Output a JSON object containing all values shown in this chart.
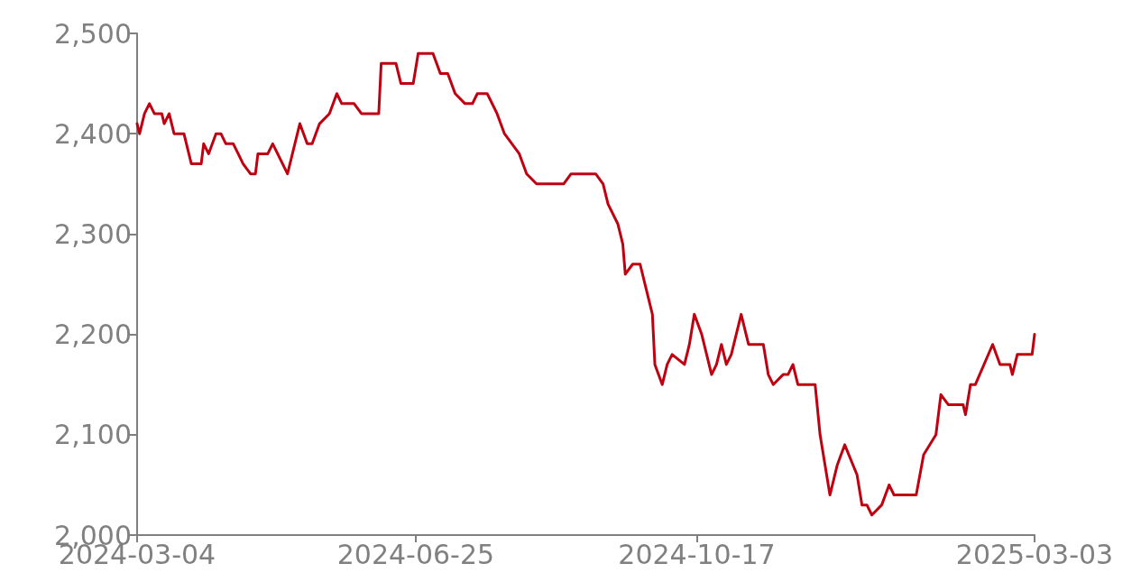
{
  "chart_data": {
    "type": "line",
    "color": "#c00010",
    "line_style": "solid",
    "marker": "none",
    "grid": false,
    "xlim": [
      "2024-03-04",
      "2025-03-03"
    ],
    "xticks": [
      "2024-03-04",
      "2024-06-25",
      "2024-10-17",
      "2025-03-03"
    ],
    "ylim": [
      2000,
      2500
    ],
    "yticks": [
      {
        "value": 2000,
        "label": "2,000"
      },
      {
        "value": 2100,
        "label": "2,100"
      },
      {
        "value": 2200,
        "label": "2,200"
      },
      {
        "value": 2300,
        "label": "2,300"
      },
      {
        "value": 2400,
        "label": "2,400"
      },
      {
        "value": 2500,
        "label": "2,500"
      }
    ],
    "x": [
      "2024-03-04",
      "2024-03-05",
      "2024-03-07",
      "2024-03-09",
      "2024-03-11",
      "2024-03-14",
      "2024-03-15",
      "2024-03-17",
      "2024-03-19",
      "2024-03-23",
      "2024-03-26",
      "2024-03-30",
      "2024-03-31",
      "2024-04-02",
      "2024-04-05",
      "2024-04-07",
      "2024-04-09",
      "2024-04-12",
      "2024-04-14",
      "2024-04-16",
      "2024-04-19",
      "2024-04-21",
      "2024-04-22",
      "2024-04-26",
      "2024-04-28",
      "2024-04-30",
      "2024-05-04",
      "2024-05-06",
      "2024-05-09",
      "2024-05-12",
      "2024-05-14",
      "2024-05-17",
      "2024-05-21",
      "2024-05-24",
      "2024-05-26",
      "2024-05-31",
      "2024-06-03",
      "2024-06-10",
      "2024-06-11",
      "2024-06-17",
      "2024-06-19",
      "2024-06-24",
      "2024-06-26",
      "2024-07-02",
      "2024-07-05",
      "2024-07-08",
      "2024-07-11",
      "2024-07-15",
      "2024-07-18",
      "2024-07-20",
      "2024-07-24",
      "2024-07-28",
      "2024-07-31",
      "2024-08-06",
      "2024-08-09",
      "2024-08-13",
      "2024-08-24",
      "2024-08-27",
      "2024-09-06",
      "2024-09-09",
      "2024-09-11",
      "2024-09-15",
      "2024-09-17",
      "2024-09-18",
      "2024-09-21",
      "2024-09-24",
      "2024-09-27",
      "2024-09-29",
      "2024-09-30",
      "2024-10-03",
      "2024-10-05",
      "2024-10-07",
      "2024-10-12",
      "2024-10-14",
      "2024-10-16",
      "2024-10-19",
      "2024-10-23",
      "2024-10-25",
      "2024-10-27",
      "2024-10-29",
      "2024-10-31",
      "2024-11-04",
      "2024-11-07",
      "2024-11-13",
      "2024-11-15",
      "2024-11-17",
      "2024-11-21",
      "2024-11-23",
      "2024-11-25",
      "2024-11-27",
      "2024-12-04",
      "2024-12-06",
      "2024-12-10",
      "2024-12-13",
      "2024-12-16",
      "2024-12-21",
      "2024-12-23",
      "2024-12-25",
      "2024-12-27",
      "2024-12-31",
      "2025-01-03",
      "2025-01-05",
      "2025-01-14",
      "2025-01-17",
      "2025-01-22",
      "2025-01-24",
      "2025-01-27",
      "2025-02-02",
      "2025-02-03",
      "2025-02-05",
      "2025-02-07",
      "2025-02-14",
      "2025-02-17",
      "2025-02-21",
      "2025-02-22",
      "2025-02-24",
      "2025-03-02",
      "2025-03-03"
    ],
    "values": [
      2410,
      2400,
      2420,
      2430,
      2420,
      2420,
      2410,
      2420,
      2400,
      2400,
      2370,
      2370,
      2390,
      2380,
      2400,
      2400,
      2390,
      2390,
      2380,
      2370,
      2360,
      2360,
      2380,
      2380,
      2390,
      2380,
      2360,
      2380,
      2410,
      2390,
      2390,
      2410,
      2420,
      2440,
      2430,
      2430,
      2420,
      2420,
      2470,
      2470,
      2450,
      2450,
      2480,
      2480,
      2460,
      2460,
      2440,
      2430,
      2430,
      2440,
      2440,
      2420,
      2400,
      2380,
      2360,
      2350,
      2350,
      2360,
      2360,
      2350,
      2330,
      2310,
      2290,
      2260,
      2270,
      2270,
      2240,
      2220,
      2170,
      2150,
      2170,
      2180,
      2170,
      2190,
      2220,
      2200,
      2160,
      2170,
      2190,
      2170,
      2180,
      2220,
      2190,
      2190,
      2160,
      2150,
      2160,
      2160,
      2170,
      2150,
      2150,
      2100,
      2040,
      2070,
      2090,
      2060,
      2030,
      2030,
      2020,
      2030,
      2050,
      2040,
      2040,
      2080,
      2100,
      2140,
      2130,
      2130,
      2120,
      2150,
      2150,
      2190,
      2170,
      2170,
      2160,
      2180,
      2180,
      2200
    ]
  }
}
